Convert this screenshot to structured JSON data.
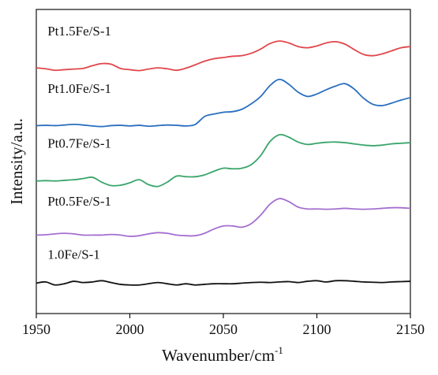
{
  "chart_data": {
    "type": "line",
    "title": "",
    "xlabel": "Wavenumber/cm",
    "xlabel_superscript": "-1",
    "ylabel": "Intensity/a.u.",
    "xlim": [
      1950,
      2150
    ],
    "ylim": [
      0,
      100
    ],
    "y_ticks_shown": false,
    "grid": false,
    "legend": "inline labels to the left of each curve",
    "x_ticks": [
      "1950",
      "2000",
      "2050",
      "2100",
      "2150"
    ],
    "series": [
      {
        "name": "Pt1.5Fe/S-1",
        "color": "#e0474c",
        "x": [
          1950,
          1955,
          1960,
          1965,
          1970,
          1975,
          1980,
          1985,
          1990,
          1995,
          2000,
          2005,
          2010,
          2015,
          2020,
          2025,
          2030,
          2035,
          2040,
          2045,
          2050,
          2055,
          2060,
          2065,
          2070,
          2075,
          2080,
          2085,
          2090,
          2095,
          2100,
          2105,
          2110,
          2115,
          2120,
          2125,
          2130,
          2135,
          2140,
          2145,
          2150
        ],
        "values": [
          80.8,
          80.5,
          80.0,
          80.2,
          80.4,
          80.6,
          81.5,
          82.2,
          82.0,
          80.6,
          80.2,
          79.9,
          80.4,
          80.8,
          80.5,
          80.0,
          80.7,
          81.8,
          83.0,
          83.8,
          84.2,
          84.6,
          84.8,
          85.6,
          87.0,
          88.8,
          89.6,
          89.0,
          87.8,
          87.4,
          88.0,
          89.0,
          89.4,
          88.6,
          86.8,
          85.2,
          84.8,
          85.4,
          86.4,
          87.4,
          87.8
        ]
      },
      {
        "name": "Pt1.0Fe/S-1",
        "color": "#2a6fbf",
        "x": [
          1950,
          1955,
          1960,
          1965,
          1970,
          1975,
          1980,
          1985,
          1990,
          1995,
          2000,
          2005,
          2010,
          2015,
          2020,
          2025,
          2030,
          2035,
          2040,
          2045,
          2050,
          2055,
          2060,
          2065,
          2070,
          2075,
          2080,
          2085,
          2090,
          2095,
          2100,
          2105,
          2110,
          2115,
          2120,
          2125,
          2130,
          2135,
          2140,
          2145,
          2150
        ],
        "values": [
          61.8,
          61.9,
          61.8,
          62.0,
          62.2,
          62.0,
          61.7,
          61.5,
          61.8,
          61.9,
          61.7,
          61.9,
          61.6,
          61.8,
          62.0,
          61.9,
          61.7,
          62.2,
          64.8,
          65.6,
          66.2,
          66.4,
          67.2,
          69.0,
          71.4,
          75.0,
          77.0,
          75.4,
          72.8,
          71.4,
          72.2,
          73.6,
          74.8,
          75.6,
          73.8,
          70.8,
          68.8,
          68.4,
          69.2,
          70.2,
          71.0
        ]
      },
      {
        "name": "Pt0.7Fe/S-1",
        "color": "#3aa56c",
        "x": [
          1950,
          1955,
          1960,
          1965,
          1970,
          1975,
          1980,
          1985,
          1990,
          1995,
          2000,
          2005,
          2010,
          2015,
          2020,
          2025,
          2030,
          2035,
          2040,
          2045,
          2050,
          2055,
          2060,
          2065,
          2070,
          2075,
          2080,
          2085,
          2090,
          2095,
          2100,
          2105,
          2110,
          2115,
          2120,
          2125,
          2130,
          2135,
          2140,
          2145,
          2150
        ],
        "values": [
          43.6,
          43.7,
          43.6,
          43.8,
          44.0,
          44.4,
          44.8,
          43.2,
          42.1,
          42.2,
          43.0,
          44.0,
          42.4,
          41.8,
          43.2,
          45.2,
          45.0,
          45.0,
          45.6,
          46.8,
          47.8,
          47.6,
          47.8,
          49.0,
          52.0,
          56.6,
          58.8,
          58.0,
          56.4,
          55.6,
          56.0,
          56.3,
          56.4,
          56.2,
          55.8,
          55.4,
          55.2,
          55.4,
          55.8,
          56.0,
          56.2
        ]
      },
      {
        "name": "Pt0.5Fe/S-1",
        "color": "#a46fd0",
        "x": [
          1950,
          1955,
          1960,
          1965,
          1970,
          1975,
          1980,
          1985,
          1990,
          1995,
          2000,
          2005,
          2010,
          2015,
          2020,
          2025,
          2030,
          2035,
          2040,
          2045,
          2050,
          2055,
          2060,
          2065,
          2070,
          2075,
          2080,
          2085,
          2090,
          2095,
          2100,
          2105,
          2110,
          2115,
          2120,
          2125,
          2130,
          2135,
          2140,
          2145,
          2150
        ],
        "values": [
          25.8,
          25.9,
          26.2,
          26.4,
          26.2,
          25.8,
          25.8,
          25.8,
          26.0,
          25.8,
          25.4,
          25.6,
          26.2,
          26.6,
          26.4,
          25.8,
          25.6,
          25.6,
          26.4,
          27.8,
          28.8,
          28.8,
          28.4,
          29.6,
          32.4,
          36.0,
          37.8,
          36.8,
          35.0,
          34.4,
          34.4,
          34.3,
          34.4,
          34.6,
          34.4,
          34.3,
          34.4,
          34.6,
          34.8,
          34.8,
          34.6
        ]
      },
      {
        "name": "1.0Fe/S-1",
        "color": "#111111",
        "x": [
          1950,
          1955,
          1960,
          1965,
          1970,
          1975,
          1980,
          1985,
          1990,
          1995,
          2000,
          2005,
          2010,
          2015,
          2020,
          2025,
          2030,
          2035,
          2040,
          2045,
          2050,
          2055,
          2060,
          2065,
          2070,
          2075,
          2080,
          2085,
          2090,
          2095,
          2100,
          2105,
          2110,
          2115,
          2120,
          2125,
          2130,
          2135,
          2140,
          2145,
          2150
        ],
        "values": [
          10.0,
          10.4,
          9.4,
          9.8,
          10.6,
          10.2,
          10.4,
          10.8,
          10.2,
          9.6,
          9.4,
          9.4,
          9.8,
          10.2,
          9.8,
          9.4,
          9.8,
          9.4,
          9.6,
          9.8,
          9.8,
          9.8,
          10.0,
          10.2,
          10.3,
          10.2,
          10.4,
          10.5,
          10.2,
          10.6,
          10.8,
          10.4,
          10.8,
          10.8,
          10.6,
          10.4,
          10.3,
          10.2,
          10.4,
          10.5,
          10.6
        ]
      }
    ],
    "label_positions_data": [
      {
        "series": 0,
        "x": 1956,
        "y": 91.5
      },
      {
        "series": 1,
        "x": 1956,
        "y": 72.5
      },
      {
        "series": 2,
        "x": 1956,
        "y": 54.5
      },
      {
        "series": 3,
        "x": 1956,
        "y": 35.5
      },
      {
        "series": 4,
        "x": 1956,
        "y": 18.0
      }
    ]
  }
}
